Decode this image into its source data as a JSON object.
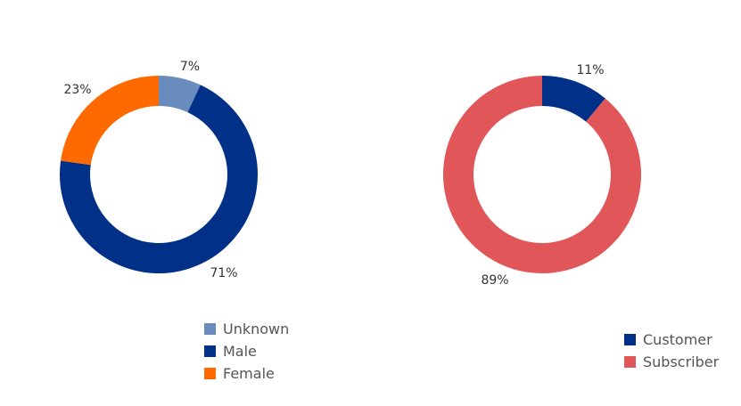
{
  "chart_data": [
    {
      "type": "pie",
      "style": "donut",
      "slices": [
        {
          "label": "Unknown",
          "value": 7,
          "display": "7%",
          "color": "#6a8bbd"
        },
        {
          "label": "Male",
          "value": 71,
          "display": "71%",
          "color": "#003087"
        },
        {
          "label": "Female",
          "value": 23,
          "display": "23%",
          "color": "#ff6a00"
        }
      ],
      "legend": [
        "Unknown",
        "Male",
        "Female"
      ]
    },
    {
      "type": "pie",
      "style": "donut",
      "slices": [
        {
          "label": "Customer",
          "value": 11,
          "display": "11%",
          "color": "#003087"
        },
        {
          "label": "Subscriber",
          "value": 89,
          "display": "89%",
          "color": "#e15759"
        }
      ],
      "legend": [
        "Customer",
        "Subscriber"
      ]
    }
  ]
}
